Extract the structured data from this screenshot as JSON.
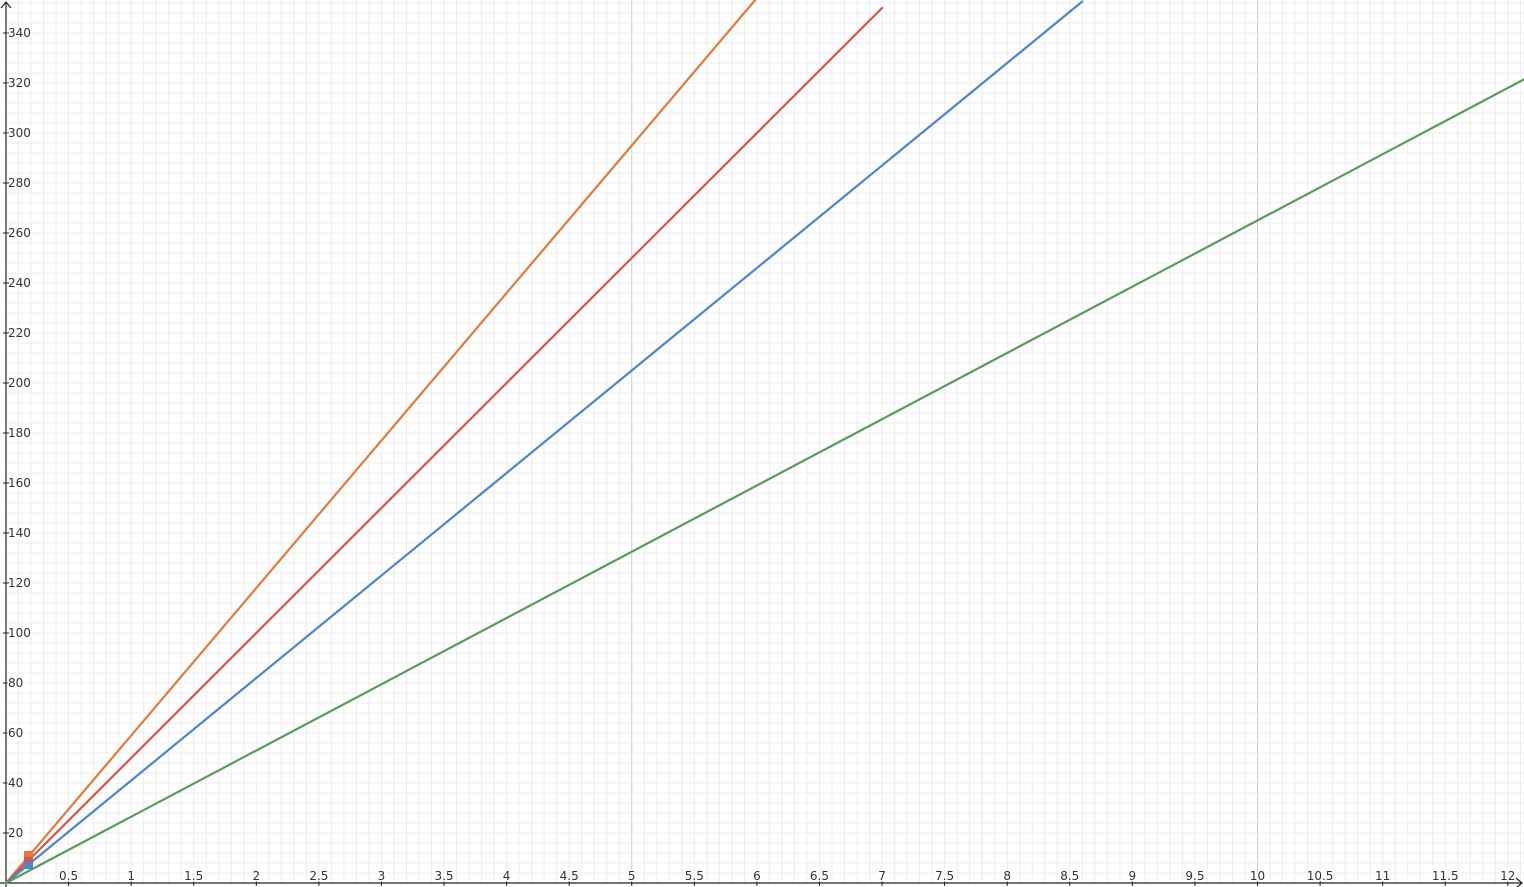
{
  "chart_data": {
    "type": "line",
    "title": "",
    "xlabel": "",
    "ylabel": "",
    "xlim": [
      0,
      12.15
    ],
    "ylim": [
      0,
      352
    ],
    "grid": true,
    "x_ticks": [
      0.5,
      1,
      1.5,
      2,
      2.5,
      3,
      3.5,
      4,
      4.5,
      5,
      5.5,
      6,
      6.5,
      7,
      7.5,
      8,
      8.5,
      9,
      9.5,
      10,
      10.5,
      11,
      11.5,
      12
    ],
    "y_ticks": [
      20,
      40,
      60,
      80,
      100,
      120,
      140,
      160,
      180,
      200,
      220,
      240,
      260,
      280,
      300,
      320,
      340
    ],
    "series": [
      {
        "color": "#e07b39",
        "x": [
          0,
          6
        ],
        "y": [
          0,
          354
        ]
      },
      {
        "color": "#d9534f",
        "x": [
          0,
          7
        ],
        "y": [
          0,
          350
        ]
      },
      {
        "color": "#4a86c8",
        "x": [
          0,
          8.6
        ],
        "y": [
          0,
          352.6
        ]
      },
      {
        "color": "#5a9a5a",
        "x": [
          0,
          12.15
        ],
        "y": [
          0,
          322
        ]
      }
    ]
  }
}
